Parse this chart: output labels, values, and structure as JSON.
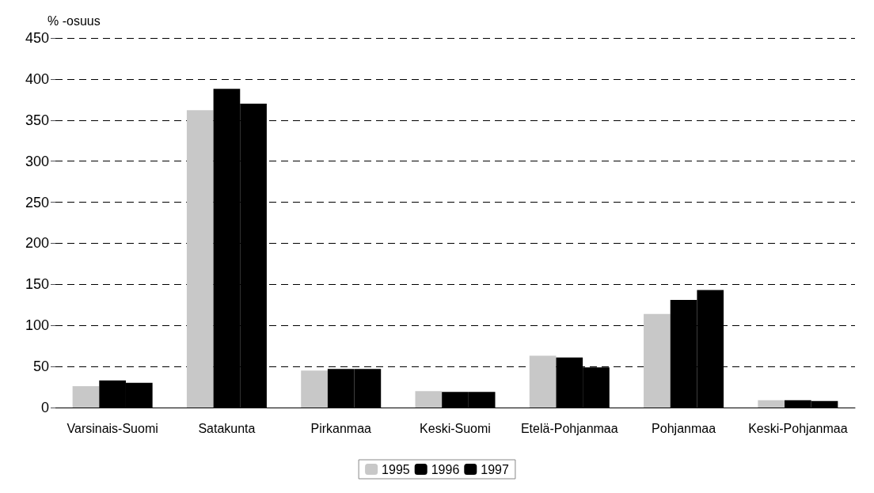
{
  "chart_data": {
    "type": "bar",
    "ylabel": "% -osuus",
    "categories": [
      "Varsinais-Suomi",
      "Satakunta",
      "Pirkanmaa",
      "Keski-Suomi",
      "Etelä-Pohjanmaa",
      "Pohjanmaa",
      "Keski-Pohjanmaa"
    ],
    "series": [
      {
        "name": "1995",
        "color": "#c8c8c8",
        "values": [
          26,
          362,
          45,
          20,
          63,
          114,
          9
        ]
      },
      {
        "name": "1996",
        "color": "#000000",
        "values": [
          33,
          388,
          47,
          19,
          61,
          131,
          9
        ]
      },
      {
        "name": "1997",
        "color": "#000000",
        "values": [
          30,
          370,
          47,
          19,
          49,
          143,
          8
        ]
      }
    ],
    "ylim": [
      0,
      450
    ],
    "yticks": [
      0,
      50,
      100,
      150,
      200,
      250,
      300,
      350,
      400,
      450
    ],
    "grid": "y",
    "legend": "bottom"
  }
}
